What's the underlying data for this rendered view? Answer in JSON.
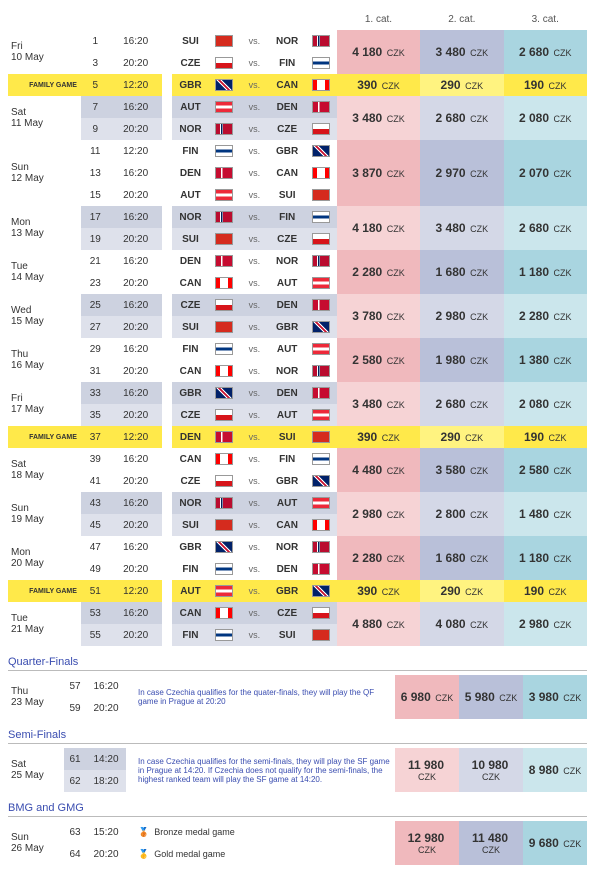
{
  "headers": [
    "1. cat.",
    "2. cat.",
    "3. cat."
  ],
  "currency": "CZK",
  "sections": [
    {
      "title": "Quarter-Finals"
    },
    {
      "title": "Semi-Finals"
    },
    {
      "title": "BMG and GMG"
    }
  ],
  "days": [
    {
      "d1": "Fri",
      "d2": "10 May",
      "alt": false,
      "fam": null,
      "games": [
        {
          "n": "1",
          "t": "16:20",
          "h": "SUI",
          "a": "NOR",
          "hf": "sui",
          "af": "nor"
        },
        {
          "n": "3",
          "t": "20:20",
          "h": "CZE",
          "a": "FIN",
          "hf": "cze",
          "af": "fin"
        }
      ],
      "prices": [
        {
          "v": "4 180",
          "s": "p1"
        },
        {
          "v": "3 480",
          "s": "b1"
        },
        {
          "v": "2 680",
          "s": "c1"
        }
      ]
    },
    {
      "d1": "Sat",
      "d2": "11 May",
      "alt": true,
      "fam": {
        "n": "5",
        "t": "12:20",
        "h": "GBR",
        "a": "CAN",
        "hf": "gbr",
        "af": "can"
      },
      "games": [
        {
          "n": "7",
          "t": "16:20",
          "h": "AUT",
          "a": "DEN",
          "hf": "aut",
          "af": "den"
        },
        {
          "n": "9",
          "t": "20:20",
          "h": "NOR",
          "a": "CZE",
          "hf": "nor",
          "af": "cze"
        }
      ],
      "famPrices": [
        {
          "v": "390",
          "s": "y"
        },
        {
          "v": "290",
          "s": "y2"
        },
        {
          "v": "190",
          "s": "y"
        }
      ],
      "prices": [
        {
          "v": "3 480",
          "s": "p2"
        },
        {
          "v": "2 680",
          "s": "b2"
        },
        {
          "v": "2 080",
          "s": "c2"
        }
      ]
    },
    {
      "d1": "Sun",
      "d2": "12 May",
      "alt": false,
      "fam": null,
      "games": [
        {
          "n": "11",
          "t": "12:20",
          "h": "FIN",
          "a": "GBR",
          "hf": "fin",
          "af": "gbr"
        },
        {
          "n": "13",
          "t": "16:20",
          "h": "DEN",
          "a": "CAN",
          "hf": "den",
          "af": "can"
        },
        {
          "n": "15",
          "t": "20:20",
          "h": "AUT",
          "a": "SUI",
          "hf": "aut",
          "af": "sui"
        }
      ],
      "prices": [
        {
          "v": "3 870",
          "s": "p1"
        },
        {
          "v": "2 970",
          "s": "b1"
        },
        {
          "v": "2 070",
          "s": "c1"
        }
      ]
    },
    {
      "d1": "Mon",
      "d2": "13 May",
      "alt": true,
      "fam": null,
      "games": [
        {
          "n": "17",
          "t": "16:20",
          "h": "NOR",
          "a": "FIN",
          "hf": "nor",
          "af": "fin"
        },
        {
          "n": "19",
          "t": "20:20",
          "h": "SUI",
          "a": "CZE",
          "hf": "sui",
          "af": "cze"
        }
      ],
      "prices": [
        {
          "v": "4 180",
          "s": "p2"
        },
        {
          "v": "3 480",
          "s": "b2"
        },
        {
          "v": "2 680",
          "s": "c2"
        }
      ]
    },
    {
      "d1": "Tue",
      "d2": "14 May",
      "alt": false,
      "fam": null,
      "games": [
        {
          "n": "21",
          "t": "16:20",
          "h": "DEN",
          "a": "NOR",
          "hf": "den",
          "af": "nor"
        },
        {
          "n": "23",
          "t": "20:20",
          "h": "CAN",
          "a": "AUT",
          "hf": "can",
          "af": "aut"
        }
      ],
      "prices": [
        {
          "v": "2 280",
          "s": "p1"
        },
        {
          "v": "1 680",
          "s": "b1"
        },
        {
          "v": "1 180",
          "s": "c1"
        }
      ]
    },
    {
      "d1": "Wed",
      "d2": "15 May",
      "alt": true,
      "fam": null,
      "games": [
        {
          "n": "25",
          "t": "16:20",
          "h": "CZE",
          "a": "DEN",
          "hf": "cze",
          "af": "den"
        },
        {
          "n": "27",
          "t": "20:20",
          "h": "SUI",
          "a": "GBR",
          "hf": "sui",
          "af": "gbr"
        }
      ],
      "prices": [
        {
          "v": "3 780",
          "s": "p2"
        },
        {
          "v": "2 980",
          "s": "b2"
        },
        {
          "v": "2 280",
          "s": "c2"
        }
      ]
    },
    {
      "d1": "Thu",
      "d2": "16 May",
      "alt": false,
      "fam": null,
      "games": [
        {
          "n": "29",
          "t": "16:20",
          "h": "FIN",
          "a": "AUT",
          "hf": "fin",
          "af": "aut"
        },
        {
          "n": "31",
          "t": "20:20",
          "h": "CAN",
          "a": "NOR",
          "hf": "can",
          "af": "nor"
        }
      ],
      "prices": [
        {
          "v": "2 580",
          "s": "p1"
        },
        {
          "v": "1 980",
          "s": "b1"
        },
        {
          "v": "1 380",
          "s": "c1"
        }
      ]
    },
    {
      "d1": "Fri",
      "d2": "17 May",
      "alt": true,
      "fam": null,
      "games": [
        {
          "n": "33",
          "t": "16:20",
          "h": "GBR",
          "a": "DEN",
          "hf": "gbr",
          "af": "den"
        },
        {
          "n": "35",
          "t": "20:20",
          "h": "CZE",
          "a": "AUT",
          "hf": "cze",
          "af": "aut"
        }
      ],
      "prices": [
        {
          "v": "3 480",
          "s": "p2"
        },
        {
          "v": "2 680",
          "s": "b2"
        },
        {
          "v": "2 080",
          "s": "c2"
        }
      ]
    },
    {
      "d1": "Sat",
      "d2": "18 May",
      "alt": false,
      "fam": {
        "n": "37",
        "t": "12:20",
        "h": "DEN",
        "a": "SUI",
        "hf": "den",
        "af": "sui"
      },
      "games": [
        {
          "n": "39",
          "t": "16:20",
          "h": "CAN",
          "a": "FIN",
          "hf": "can",
          "af": "fin"
        },
        {
          "n": "41",
          "t": "20:20",
          "h": "CZE",
          "a": "GBR",
          "hf": "cze",
          "af": "gbr"
        }
      ],
      "famPrices": [
        {
          "v": "390",
          "s": "y"
        },
        {
          "v": "290",
          "s": "y2"
        },
        {
          "v": "190",
          "s": "y"
        }
      ],
      "prices": [
        {
          "v": "4 480",
          "s": "p1"
        },
        {
          "v": "3 580",
          "s": "b1"
        },
        {
          "v": "2 580",
          "s": "c1"
        }
      ]
    },
    {
      "d1": "Sun",
      "d2": "19 May",
      "alt": true,
      "fam": null,
      "games": [
        {
          "n": "43",
          "t": "16:20",
          "h": "NOR",
          "a": "AUT",
          "hf": "nor",
          "af": "aut"
        },
        {
          "n": "45",
          "t": "20:20",
          "h": "SUI",
          "a": "CAN",
          "hf": "sui",
          "af": "can"
        }
      ],
      "prices": [
        {
          "v": "2 980",
          "s": "p2"
        },
        {
          "v": "2 800",
          "s": "b2"
        },
        {
          "v": "1 480",
          "s": "c2"
        }
      ]
    },
    {
      "d1": "Mon",
      "d2": "20 May",
      "alt": false,
      "fam": null,
      "games": [
        {
          "n": "47",
          "t": "16:20",
          "h": "GBR",
          "a": "NOR",
          "hf": "gbr",
          "af": "nor"
        },
        {
          "n": "49",
          "t": "20:20",
          "h": "FIN",
          "a": "DEN",
          "hf": "fin",
          "af": "den"
        }
      ],
      "prices": [
        {
          "v": "2 280",
          "s": "p1"
        },
        {
          "v": "1 680",
          "s": "b1"
        },
        {
          "v": "1 180",
          "s": "c1"
        }
      ]
    },
    {
      "d1": "Tue",
      "d2": "21 May",
      "alt": true,
      "fam": {
        "n": "51",
        "t": "12:20",
        "h": "AUT",
        "a": "GBR",
        "hf": "aut",
        "af": "gbr"
      },
      "games": [
        {
          "n": "53",
          "t": "16:20",
          "h": "CAN",
          "a": "CZE",
          "hf": "can",
          "af": "cze"
        },
        {
          "n": "55",
          "t": "20:20",
          "h": "FIN",
          "a": "SUI",
          "hf": "fin",
          "af": "sui"
        }
      ],
      "famPrices": [
        {
          "v": "390",
          "s": "y"
        },
        {
          "v": "290",
          "s": "y2"
        },
        {
          "v": "190",
          "s": "y"
        }
      ],
      "prices": [
        {
          "v": "4 880",
          "s": "p2"
        },
        {
          "v": "4 080",
          "s": "b2"
        },
        {
          "v": "2 980",
          "s": "c2"
        }
      ]
    }
  ],
  "qf": {
    "d1": "Thu",
    "d2": "23 May",
    "games": [
      {
        "n": "57",
        "t": "16:20"
      },
      {
        "n": "59",
        "t": "20:20"
      }
    ],
    "note": "In case Czechia qualifies for the quater-finals, they will play the QF game in Prague at 20:20",
    "prices": [
      {
        "v": "6 980",
        "s": "p1"
      },
      {
        "v": "5 980",
        "s": "b1"
      },
      {
        "v": "3 980",
        "s": "c1"
      }
    ]
  },
  "sf": {
    "d1": "Sat",
    "d2": "25 May",
    "games": [
      {
        "n": "61",
        "t": "14:20"
      },
      {
        "n": "62",
        "t": "18:20"
      }
    ],
    "note": "In case Czechia qualifies for the semi-finals, they will play the SF game in Prague at 14:20. If Czechia does not qualify for the semi-finals, the highest ranked team will play the SF game at 14:20.",
    "prices": [
      {
        "v": "11 980",
        "s": "p2"
      },
      {
        "v": "10 980",
        "s": "b2"
      },
      {
        "v": "8 980",
        "s": "c2"
      }
    ]
  },
  "medals": {
    "d1": "Sun",
    "d2": "26 May",
    "games": [
      {
        "n": "63",
        "t": "15:20",
        "lbl": "Bronze medal game",
        "icon": "🥉"
      },
      {
        "n": "64",
        "t": "20:20",
        "lbl": "Gold medal game",
        "icon": "🥇"
      }
    ],
    "prices": [
      {
        "v": "12 980",
        "s": "p1"
      },
      {
        "v": "11 480",
        "s": "b1"
      },
      {
        "v": "9 680",
        "s": "c1"
      }
    ]
  },
  "flags": {
    "sui": "linear-gradient(#d52b1e,#d52b1e)",
    "nor": "linear-gradient(90deg,#ba0c2f 25%,#fff 25% 30%,#00205b 30% 40%,#fff 40% 45%,#ba0c2f 45%)",
    "cze": "linear-gradient(#fff 50%,#d7141a 50%)",
    "fin": "linear-gradient(#fff 35%,#003580 35% 65%,#fff 65%)",
    "gbr": "linear-gradient(45deg,#012169 40%,#fff 40% 45%,#c8102e 45% 55%,#fff 55% 60%,#012169 60%)",
    "can": "linear-gradient(90deg,#ff0000 25%,#fff 25% 75%,#ff0000 75%)",
    "aut": "linear-gradient(#ed2939 33%,#fff 33% 66%,#ed2939 66%)",
    "den": "linear-gradient(90deg,#c60c30 30%,#fff 30% 42%,#c60c30 42%)"
  },
  "famLabel": "FAMILY GAME"
}
